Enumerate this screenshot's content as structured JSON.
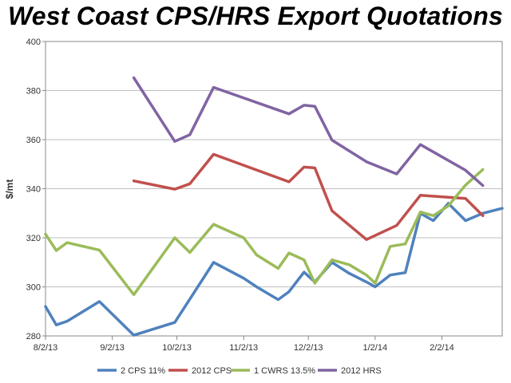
{
  "chart_data": {
    "type": "line",
    "title": "West Coast CPS/HRS Export Quotations",
    "ylabel": "$/mt",
    "xlabel": "",
    "ylim": [
      280,
      400
    ],
    "yticks": [
      280,
      300,
      320,
      340,
      360,
      380,
      400
    ],
    "xlim": [
      "2013-08-02",
      "2014-03-02"
    ],
    "xticks": [
      {
        "date": "2013-08-02",
        "label": "8/2/13"
      },
      {
        "date": "2013-09-02",
        "label": "9/2/13"
      },
      {
        "date": "2013-10-02",
        "label": "10/2/13"
      },
      {
        "date": "2013-11-02",
        "label": "11/2/13"
      },
      {
        "date": "2013-12-02",
        "label": "12/2/13"
      },
      {
        "date": "2014-01-02",
        "label": "1/2/14"
      },
      {
        "date": "2014-02-02",
        "label": "2/2/14"
      }
    ],
    "grid": "horizontal",
    "legend_position": "bottom",
    "series": [
      {
        "name": "2 CPS 11%",
        "color": "#4f81bd",
        "points": [
          {
            "x": "2013-08-02",
            "y": 292
          },
          {
            "x": "2013-08-07",
            "y": 284.5
          },
          {
            "x": "2013-08-12",
            "y": 286
          },
          {
            "x": "2013-08-27",
            "y": 294
          },
          {
            "x": "2013-09-12",
            "y": 280.3
          },
          {
            "x": "2013-10-01",
            "y": 285.5
          },
          {
            "x": "2013-10-19",
            "y": 310
          },
          {
            "x": "2013-11-02",
            "y": 303.5
          },
          {
            "x": "2013-11-08",
            "y": 300
          },
          {
            "x": "2013-11-18",
            "y": 294.8
          },
          {
            "x": "2013-11-23",
            "y": 298
          },
          {
            "x": "2013-11-30",
            "y": 306
          },
          {
            "x": "2013-12-05",
            "y": 302
          },
          {
            "x": "2013-12-13",
            "y": 310
          },
          {
            "x": "2013-12-21",
            "y": 305.5
          },
          {
            "x": "2013-12-29",
            "y": 302
          },
          {
            "x": "2014-01-02",
            "y": 300
          },
          {
            "x": "2014-01-09",
            "y": 304.8
          },
          {
            "x": "2014-01-16",
            "y": 305.8
          },
          {
            "x": "2014-01-23",
            "y": 330
          },
          {
            "x": "2014-01-29",
            "y": 327
          },
          {
            "x": "2014-02-05",
            "y": 334
          },
          {
            "x": "2014-02-13",
            "y": 327
          },
          {
            "x": "2014-02-21",
            "y": 330
          },
          {
            "x": "2014-03-02",
            "y": 332
          }
        ]
      },
      {
        "name": "2012 CPS",
        "color": "#c0504d",
        "points": [
          {
            "x": "2013-09-12",
            "y": 343.2
          },
          {
            "x": "2013-10-01",
            "y": 339.8
          },
          {
            "x": "2013-10-08",
            "y": 342
          },
          {
            "x": "2013-10-19",
            "y": 354
          },
          {
            "x": "2013-11-23",
            "y": 342.8
          },
          {
            "x": "2013-11-30",
            "y": 348.8
          },
          {
            "x": "2013-12-05",
            "y": 348.5
          },
          {
            "x": "2013-12-13",
            "y": 331
          },
          {
            "x": "2013-12-29",
            "y": 319.3
          },
          {
            "x": "2014-01-12",
            "y": 325
          },
          {
            "x": "2014-01-23",
            "y": 337.3
          },
          {
            "x": "2014-02-13",
            "y": 336
          },
          {
            "x": "2014-02-21",
            "y": 329
          }
        ]
      },
      {
        "name": "1 CWRS 13.5%",
        "color": "#9bbb59",
        "points": [
          {
            "x": "2013-08-02",
            "y": 321.5
          },
          {
            "x": "2013-08-07",
            "y": 314.8
          },
          {
            "x": "2013-08-12",
            "y": 318
          },
          {
            "x": "2013-08-27",
            "y": 315
          },
          {
            "x": "2013-09-12",
            "y": 296.8
          },
          {
            "x": "2013-10-01",
            "y": 320
          },
          {
            "x": "2013-10-08",
            "y": 314
          },
          {
            "x": "2013-10-19",
            "y": 325.5
          },
          {
            "x": "2013-11-02",
            "y": 320
          },
          {
            "x": "2013-11-08",
            "y": 313
          },
          {
            "x": "2013-11-18",
            "y": 307.5
          },
          {
            "x": "2013-11-23",
            "y": 313.8
          },
          {
            "x": "2013-11-30",
            "y": 311
          },
          {
            "x": "2013-12-05",
            "y": 301.5
          },
          {
            "x": "2013-12-13",
            "y": 311
          },
          {
            "x": "2013-12-21",
            "y": 309
          },
          {
            "x": "2013-12-29",
            "y": 304.8
          },
          {
            "x": "2014-01-02",
            "y": 301.5
          },
          {
            "x": "2014-01-09",
            "y": 316.5
          },
          {
            "x": "2014-01-16",
            "y": 317.5
          },
          {
            "x": "2014-01-23",
            "y": 330.5
          },
          {
            "x": "2014-01-29",
            "y": 329
          },
          {
            "x": "2014-02-05",
            "y": 333
          },
          {
            "x": "2014-02-13",
            "y": 341.5
          },
          {
            "x": "2014-02-21",
            "y": 347.8
          }
        ]
      },
      {
        "name": "2012 HRS",
        "color": "#8064a2",
        "points": [
          {
            "x": "2013-09-12",
            "y": 385.2
          },
          {
            "x": "2013-10-01",
            "y": 359.3
          },
          {
            "x": "2013-10-08",
            "y": 362
          },
          {
            "x": "2013-10-19",
            "y": 381.3
          },
          {
            "x": "2013-11-23",
            "y": 370.5
          },
          {
            "x": "2013-11-30",
            "y": 374
          },
          {
            "x": "2013-12-05",
            "y": 373.6
          },
          {
            "x": "2013-12-13",
            "y": 359.8
          },
          {
            "x": "2013-12-29",
            "y": 351
          },
          {
            "x": "2014-01-12",
            "y": 346
          },
          {
            "x": "2014-01-23",
            "y": 358
          },
          {
            "x": "2014-02-13",
            "y": 347.5
          },
          {
            "x": "2014-02-21",
            "y": 341.3
          }
        ]
      }
    ]
  }
}
